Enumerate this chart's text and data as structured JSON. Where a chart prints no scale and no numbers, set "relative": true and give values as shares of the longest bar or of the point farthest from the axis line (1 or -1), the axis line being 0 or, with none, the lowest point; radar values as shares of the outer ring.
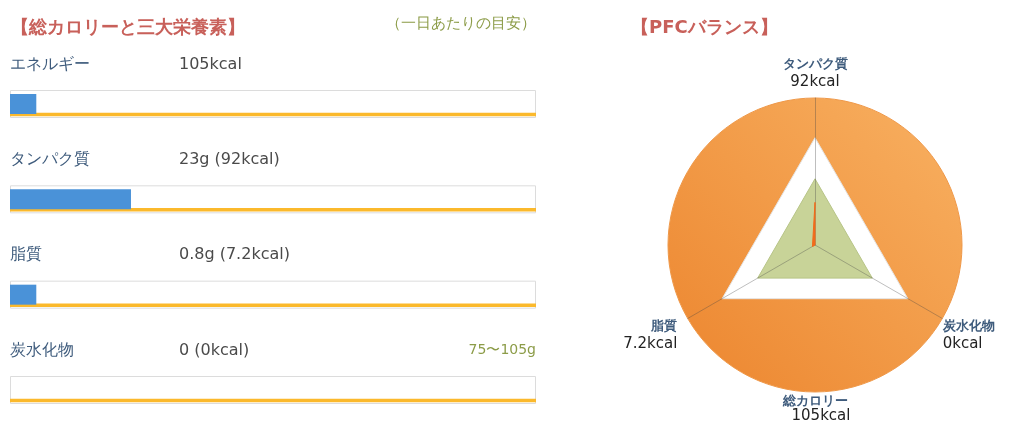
{
  "chart_data": [
    {
      "type": "bar",
      "orientation": "horizontal",
      "relative": true,
      "title": "【総カロリーと三大栄養素】",
      "categories": [
        "エネルギー",
        "タンパク質",
        "脂質",
        "炭水化物"
      ],
      "series": [
        {
          "color": "#ffffff",
          "values": [
            1,
            1,
            1,
            1
          ]
        },
        {
          "color": "#fbb92c",
          "values": [
            1,
            1,
            1,
            1
          ]
        },
        {
          "color": "#4a92d8",
          "values": [
            0.05,
            0.23,
            0.05,
            0
          ]
        }
      ],
      "annotations": [
        "（一日あたりの目安）",
        "105kcal",
        "23g (92kcal)",
        "0.8g (7.2kcal)",
        "0 (0kcal)",
        "75〜105g"
      ]
    },
    {
      "type": "radar",
      "relative": true,
      "title": "【PFCバランス】",
      "categories": [
        "タンパク質\n92kcal",
        "炭水化物\n0kcal",
        "脂質\n7.2kcal"
      ],
      "series": [
        {
          "color": "#f26a1a",
          "values": [
            0.29,
            0,
            0.02
          ]
        }
      ],
      "annotations": [
        "総カロリー",
        "105kcal"
      ]
    }
  ]
}
